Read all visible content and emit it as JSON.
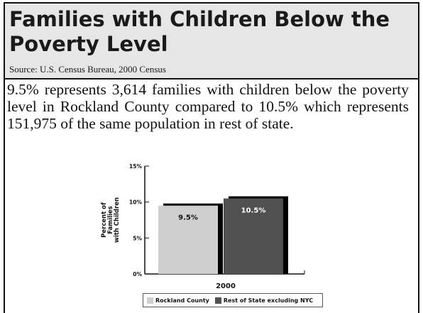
{
  "header": {
    "title": "Families with Children Below the Poverty Level",
    "source": "Source: U.S. Census Bureau, 2000 Census"
  },
  "description": "9.5% represents 3,614 families with children below the poverty level in Rockland County compared to 10.5% which represents 151,975 of the same population in rest of state.",
  "colors": {
    "header_bg": "#e6e6e6",
    "rockland": "#cfcfcf",
    "rest_of_state": "#505050",
    "shadow": "#000000"
  },
  "chart_data": {
    "type": "bar",
    "categories": [
      "2000"
    ],
    "series": [
      {
        "name": "Rockland County",
        "values": [
          9.5
        ],
        "label": "9.5%",
        "color": "#cfcfcf"
      },
      {
        "name": "Rest of State excluding NYC",
        "values": [
          10.5
        ],
        "label": "10.5%",
        "color": "#505050"
      }
    ],
    "ylabel": "Percent of Families with Children",
    "ylabel_lines": [
      "Percent of",
      "Families",
      "with Children"
    ],
    "ylim": [
      0,
      15
    ],
    "yticks": [
      0,
      5,
      10,
      15
    ],
    "ytick_labels": [
      "0%",
      "5%",
      "10%",
      "15%"
    ],
    "xlabel": "2000",
    "legend_position": "bottom",
    "grid": false
  }
}
